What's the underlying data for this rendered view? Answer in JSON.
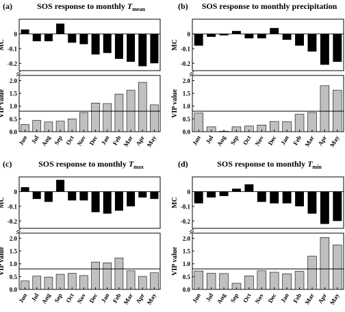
{
  "panels_meta": [
    {
      "letter": "(a)",
      "title_prefix": "SOS response to monthly ",
      "title_var": "T",
      "title_sub": "mean"
    },
    {
      "letter": "(b)",
      "title_prefix": "SOS response to monthly precipitation",
      "title_var": "",
      "title_sub": ""
    },
    {
      "letter": "(c)",
      "title_prefix": "SOS response to monthly ",
      "title_var": "T",
      "title_sub": "max"
    },
    {
      "letter": "(d)",
      "title_prefix": "SOS response to monthly ",
      "title_var": "T",
      "title_sub": "min"
    }
  ],
  "colors": {
    "mc_bar": "#000000",
    "vip_bar": "#c0c0c0",
    "axis": "#000000",
    "threshold": "#000000"
  },
  "chart_data": [
    {
      "type": "bar",
      "categories": [
        "Jun",
        "Jul",
        "Aug",
        "Sep",
        "Oct",
        "Nov",
        "Dec",
        "Jan",
        "Feb",
        "Mar",
        "Apr",
        "May"
      ],
      "series": [
        {
          "name": "MC",
          "values": [
            0.03,
            -0.05,
            -0.05,
            0.07,
            -0.06,
            -0.07,
            -0.14,
            -0.13,
            -0.17,
            -0.19,
            -0.22,
            -0.2
          ]
        },
        {
          "name": "VIP value",
          "values": [
            0.28,
            0.44,
            0.38,
            0.41,
            0.5,
            0.75,
            1.12,
            1.1,
            1.47,
            1.62,
            1.93,
            1.05
          ]
        }
      ],
      "mc_ylabel": "MC",
      "vip_ylabel": "VIP value",
      "mc_ylim": [
        -0.25,
        0.1
      ],
      "vip_ylim": [
        0,
        2.2
      ],
      "mc_ticks": [
        "0",
        "-0.1",
        "-0.2"
      ],
      "vip_ticks": [
        "0.0",
        "0.5",
        "1.0",
        "1.5",
        "2.0"
      ],
      "vip_threshold": 0.8,
      "grid": false
    },
    {
      "type": "bar",
      "categories": [
        "Jun",
        "Jul",
        "Aug",
        "Sep",
        "Oct",
        "Nov",
        "Dec",
        "Jan",
        "Feb",
        "Mar",
        "Apr",
        "May"
      ],
      "series": [
        {
          "name": "MC",
          "values": [
            -0.08,
            -0.02,
            -0.01,
            0.02,
            -0.03,
            -0.03,
            0.04,
            -0.04,
            -0.08,
            -0.12,
            -0.21,
            -0.19
          ]
        },
        {
          "name": "VIP value",
          "values": [
            0.73,
            0.19,
            0.02,
            0.19,
            0.22,
            0.26,
            0.4,
            0.39,
            0.68,
            0.75,
            1.8,
            1.62
          ]
        }
      ],
      "mc_ylabel": "MC",
      "vip_ylabel": "VIP value",
      "mc_ylim": [
        -0.25,
        0.1
      ],
      "vip_ylim": [
        0,
        2.2
      ],
      "mc_ticks": [
        "0",
        "-0.1",
        "-0.2"
      ],
      "vip_ticks": [
        "0.0",
        "0.5",
        "1.0",
        "1.5",
        "2.0"
      ],
      "vip_threshold": 0.8,
      "grid": false
    },
    {
      "type": "bar",
      "categories": [
        "Jun",
        "Jul",
        "Aug",
        "Sep",
        "Oct",
        "Nov",
        "Dec",
        "Jan",
        "Feb",
        "Mar",
        "Apr",
        "May"
      ],
      "series": [
        {
          "name": "MC",
          "values": [
            0.03,
            -0.05,
            -0.07,
            0.08,
            -0.06,
            -0.06,
            -0.14,
            -0.15,
            -0.13,
            -0.1,
            -0.04,
            -0.05
          ]
        },
        {
          "name": "VIP value",
          "values": [
            0.33,
            0.52,
            0.48,
            0.59,
            0.63,
            0.54,
            1.07,
            1.04,
            1.23,
            0.73,
            0.51,
            0.65
          ]
        }
      ],
      "mc_ylabel": "MC",
      "vip_ylabel": "VIP value",
      "mc_ylim": [
        -0.25,
        0.1
      ],
      "vip_ylim": [
        0,
        2.2
      ],
      "mc_ticks": [
        "0",
        "-0.1",
        "-0.2"
      ],
      "vip_ticks": [
        "0.0",
        "0.5",
        "1.0",
        "1.5",
        "2.0"
      ],
      "vip_threshold": 0.8,
      "grid": false
    },
    {
      "type": "bar",
      "categories": [
        "Jun",
        "Jul",
        "Aug",
        "Sep",
        "Oct",
        "Nov",
        "Dec",
        "Jan",
        "Feb",
        "Mar",
        "Apr",
        "May"
      ],
      "series": [
        {
          "name": "MC",
          "values": [
            -0.08,
            -0.04,
            -0.03,
            0.02,
            0.05,
            -0.07,
            -0.08,
            -0.08,
            -0.1,
            -0.15,
            -0.22,
            -0.2
          ]
        },
        {
          "name": "VIP value",
          "values": [
            0.72,
            0.63,
            0.62,
            0.24,
            0.53,
            0.73,
            0.67,
            0.61,
            0.71,
            1.3,
            2.03,
            1.74
          ]
        }
      ],
      "mc_ylabel": "MC",
      "vip_ylabel": "VIP value",
      "mc_ylim": [
        -0.25,
        0.1
      ],
      "vip_ylim": [
        0,
        2.2
      ],
      "mc_ticks": [
        "0",
        "-0.1",
        "-0.2"
      ],
      "vip_ticks": [
        "0.0",
        "0.5",
        "1.0",
        "1.5",
        "2.0"
      ],
      "vip_threshold": 0.8,
      "grid": false
    }
  ]
}
